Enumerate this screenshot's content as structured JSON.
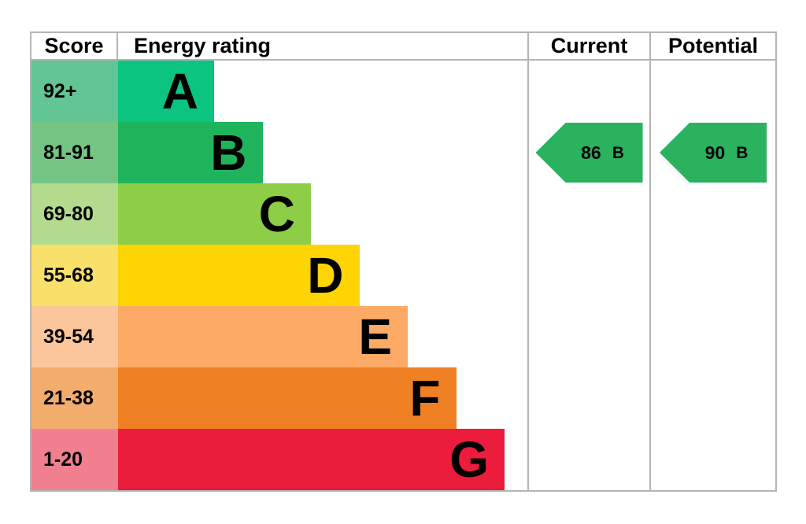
{
  "chart_data": {
    "type": "bar",
    "title": "Energy rating",
    "categories": [
      "A",
      "B",
      "C",
      "D",
      "E",
      "F",
      "G"
    ],
    "score_ranges": [
      "92+",
      "81-91",
      "69-80",
      "55-68",
      "39-54",
      "21-38",
      "1-20"
    ],
    "band_colors": [
      "#0bc47f",
      "#1fb45c",
      "#8dce46",
      "#fed402",
      "#fcaa65",
      "#ef8023",
      "#eb1c3c"
    ],
    "legend_position": "none",
    "grid": false,
    "current": {
      "value": 86,
      "band": "B"
    },
    "potential": {
      "value": 90,
      "band": "B"
    }
  },
  "header": {
    "score": "Score",
    "energy_rating": "Energy rating",
    "current": "Current",
    "potential": "Potential"
  },
  "bands": [
    {
      "letter": "A",
      "score": "92+",
      "color": "#0bc47f",
      "score_color": "#63c494"
    },
    {
      "letter": "B",
      "score": "81-91",
      "color": "#1fb45c",
      "score_color": "#74c583"
    },
    {
      "letter": "C",
      "score": "69-80",
      "color": "#8dce46",
      "score_color": "#b2db8e"
    },
    {
      "letter": "D",
      "score": "55-68",
      "color": "#fed402",
      "score_color": "#f8e06b"
    },
    {
      "letter": "E",
      "score": "39-54",
      "color": "#fcaa65",
      "score_color": "#fbc69b"
    },
    {
      "letter": "F",
      "score": "21-38",
      "color": "#ef8023",
      "score_color": "#f2ad6d"
    },
    {
      "letter": "G",
      "score": "1-20",
      "color": "#eb1c3c",
      "score_color": "#f0808f"
    }
  ],
  "current": {
    "value": "86",
    "band": "B",
    "color": "#2ab25f"
  },
  "potential": {
    "value": "90",
    "band": "B",
    "color": "#2ab25f"
  },
  "colors": {
    "border": "#b4b4b4",
    "text": "#000000",
    "background": "#ffffff"
  }
}
